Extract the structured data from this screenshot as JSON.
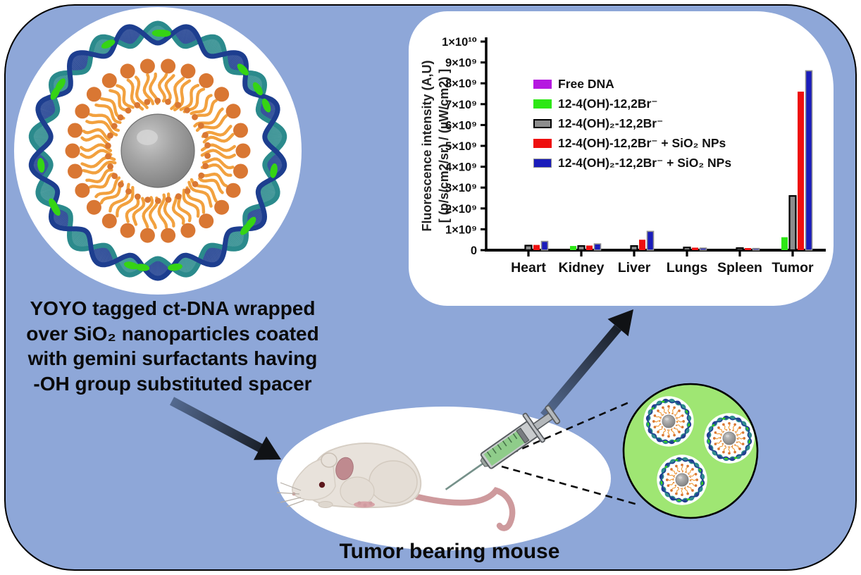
{
  "figure": {
    "caption_lines": [
      "YOYO tagged ct-DNA wrapped",
      "over SiO₂ nanoparticles coated",
      "with gemini surfactants having",
      "-OH group substituted spacer"
    ],
    "mouse_label": "Tumor bearing mouse"
  },
  "colors": {
    "background": "#8ea7d8",
    "panel": "#ffffff",
    "frame_border": "#000000",
    "green_vesicle": "#9fe673",
    "dna_navy": "#1d3e8f",
    "dna_teal": "#2b8a8c",
    "yoyo_green_tag": "#35d414",
    "surfactant_tail_orange": "#f2a13f",
    "surfactant_head_orange": "#d97733",
    "core_gray": "#8f8f8f",
    "arrow_dark": "#0d0f12",
    "arrow_light": "#546a90",
    "mouse_body": "#e8e2db",
    "mouse_pink": "#bf8a8f",
    "syringe_liquid": "#8fcc8a"
  },
  "chart_data": {
    "type": "bar",
    "title": "",
    "xlabel": "",
    "ylabel_line1": "Fluorescence intensity (A,U)",
    "ylabel_line2": "[ (p/s/cm2/sr) / (µW/cm2) ]",
    "categories": [
      "Heart",
      "Kidney",
      "Liver",
      "Lungs",
      "Spleen",
      "Tumor"
    ],
    "values_scale": "×10⁹",
    "ylim": [
      0,
      10
    ],
    "grid": false,
    "legend_position": "upper-left-inside",
    "ytick_labels": [
      "0",
      "1×10⁹",
      "2×10⁹",
      "3×10⁹",
      "4×10⁹",
      "5×10⁹",
      "6×10⁹",
      "7×10⁹",
      "8×10⁹",
      "9×10⁹",
      "1×10¹⁰"
    ],
    "series": [
      {
        "name": "Free DNA",
        "color": "#b518e0",
        "stroke": "none",
        "values": [
          0,
          0,
          0,
          0,
          0,
          0
        ]
      },
      {
        "name": "12-4(OH)-12,2Br⁻",
        "color": "#2de715",
        "stroke": "none",
        "values": [
          0,
          0.2,
          0,
          0,
          0,
          0.62
        ]
      },
      {
        "name": "12-4(OH)₂-12,2Br⁻",
        "color": "#8d8d8d",
        "stroke": "#000000",
        "stroke_width": 2.2,
        "values": [
          0.22,
          0.2,
          0.2,
          0.13,
          0.1,
          2.6
        ]
      },
      {
        "name": "12-4(OH)-12,2Br⁻ + SiO₂ NPs",
        "color": "#ee0f0f",
        "stroke": "none",
        "values": [
          0.25,
          0.22,
          0.5,
          0.12,
          0.1,
          7.6
        ]
      },
      {
        "name": "12-4(OH)₂-12,2Br⁻ + SiO₂ NPs",
        "color": "#1a1cbb",
        "stroke": "#909090",
        "stroke_width": 1.6,
        "values": [
          0.42,
          0.3,
          0.9,
          0.1,
          0.08,
          8.6
        ]
      }
    ]
  }
}
